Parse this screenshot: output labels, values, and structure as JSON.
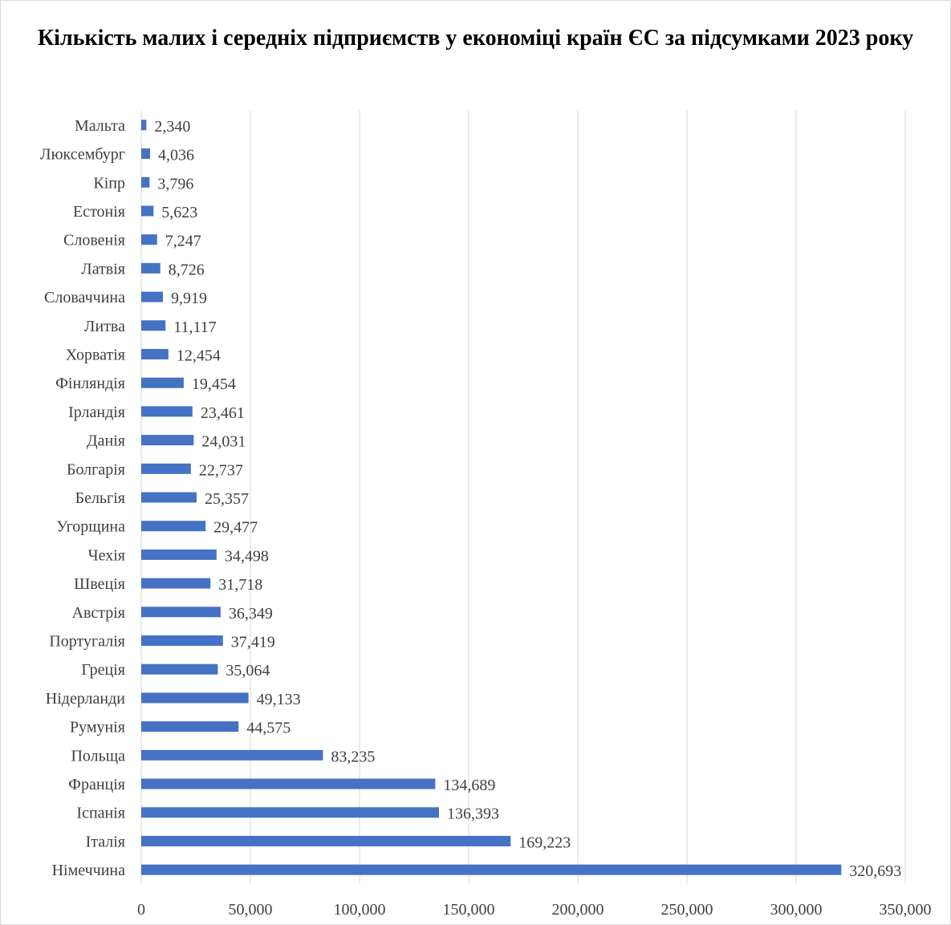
{
  "chart_data": {
    "type": "bar",
    "orientation": "horizontal",
    "title": "Кількість малих і середніх підприємств у економіці країн ЄС за підсумками 2023 року",
    "categories": [
      "Мальта",
      "Люксембург",
      "Кіпр",
      "Естонія",
      "Словенія",
      "Латвія",
      "Словаччина",
      "Литва",
      "Хорватія",
      "Фінляндія",
      "Ірландія",
      "Данія",
      "Болгарія",
      "Бельгія",
      "Угорщина",
      "Чехія",
      "Швеція",
      "Австрія",
      "Португалія",
      "Греція",
      "Нідерланди",
      "Румунія",
      "Польща",
      "Франція",
      "Іспанія",
      "Італія",
      "Німеччина"
    ],
    "values": [
      2340,
      4036,
      3796,
      5623,
      7247,
      8726,
      9919,
      11117,
      12454,
      19454,
      23461,
      24031,
      22737,
      25357,
      29477,
      34498,
      31718,
      36349,
      37419,
      35064,
      49133,
      44575,
      83235,
      134689,
      136393,
      169223,
      320693
    ],
    "value_labels": [
      "2,340",
      "4,036",
      "3,796",
      "5,623",
      "7,247",
      "8,726",
      "9,919",
      "11,117",
      "12,454",
      "19,454",
      "23,461",
      "24,031",
      "22,737",
      "25,357",
      "29,477",
      "34,498",
      "31,718",
      "36,349",
      "37,419",
      "35,064",
      "49,133",
      "44,575",
      "83,235",
      "134,689",
      "136,393",
      "169,223",
      "320,693"
    ],
    "xlim": [
      0,
      350000
    ],
    "x_ticks": [
      0,
      50000,
      100000,
      150000,
      200000,
      250000,
      300000,
      350000
    ],
    "x_tick_labels": [
      "0",
      "50,000",
      "100,000",
      "150,000",
      "200,000",
      "250,000",
      "300,000",
      "350,000"
    ],
    "xlabel": "",
    "ylabel": "",
    "grid": "vertical",
    "legend": "none",
    "bar_color": "#4472c4",
    "grid_color": "#d9d9d9",
    "text_color": "#404040"
  }
}
